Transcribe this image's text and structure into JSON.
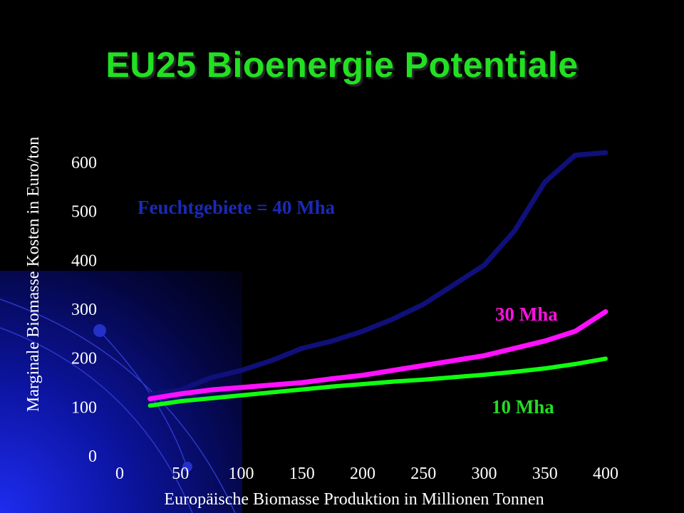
{
  "slide": {
    "title": "EU25 Bioenergie Potentiale"
  },
  "colors": {
    "background": "#000000",
    "title": "#22e022",
    "feuchtgebiete": "#10107a",
    "30mha": "#ff10ff",
    "10mha": "#10ff10",
    "feuchtgebiete_label": "#1a2ab8",
    "30mha_label": "#ff10e0",
    "10mha_label": "#22dd22"
  },
  "chart_data": {
    "type": "line",
    "title": "EU25 Bioenergie Potentiale",
    "xlabel": "Europäische Biomasse Produktion in Millionen Tonnen",
    "ylabel": "Marginale Biomasse Kosten in Euro/ton",
    "xlim": [
      0,
      400
    ],
    "ylim": [
      0,
      600
    ],
    "xticks": [
      "0",
      "50",
      "100",
      "150",
      "200",
      "250",
      "300",
      "350",
      "400"
    ],
    "yticks": [
      "0",
      "100",
      "200",
      "300",
      "400",
      "500",
      "600"
    ],
    "grid": false,
    "legend": "none",
    "series": [
      {
        "name": "Feuchtgebiete = 40 Mha",
        "x": [
          25,
          50,
          75,
          100,
          125,
          150,
          175,
          200,
          225,
          250,
          275,
          300,
          325,
          350,
          375,
          400
        ],
        "y": [
          125,
          135,
          160,
          175,
          195,
          220,
          235,
          255,
          280,
          310,
          350,
          390,
          460,
          560,
          615,
          620
        ]
      },
      {
        "name": "30 Mha",
        "x": [
          25,
          50,
          75,
          100,
          125,
          150,
          175,
          200,
          225,
          250,
          275,
          300,
          325,
          350,
          375,
          400
        ],
        "y": [
          117,
          127,
          135,
          140,
          145,
          150,
          158,
          165,
          175,
          185,
          195,
          205,
          220,
          235,
          255,
          295
        ]
      },
      {
        "name": "10 Mha",
        "x": [
          25,
          50,
          75,
          100,
          125,
          150,
          175,
          200,
          225,
          250,
          275,
          300,
          325,
          350,
          375,
          400
        ],
        "y": [
          103,
          112,
          118,
          124,
          130,
          136,
          142,
          147,
          152,
          156,
          161,
          166,
          172,
          179,
          188,
          199
        ]
      }
    ]
  }
}
